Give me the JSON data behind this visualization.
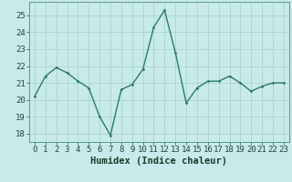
{
  "x": [
    0,
    1,
    2,
    3,
    4,
    5,
    6,
    7,
    8,
    9,
    10,
    11,
    12,
    13,
    14,
    15,
    16,
    17,
    18,
    19,
    20,
    21,
    22,
    23
  ],
  "y": [
    20.2,
    21.4,
    21.9,
    21.6,
    21.1,
    20.7,
    19.0,
    17.9,
    20.6,
    20.9,
    21.8,
    24.3,
    25.3,
    22.8,
    19.8,
    20.7,
    21.1,
    21.1,
    21.4,
    21.0,
    20.5,
    20.8,
    21.0,
    21.0
  ],
  "line_color": "#2d7a6a",
  "marker": "D",
  "marker_size": 1.8,
  "linewidth": 1.0,
  "xlabel": "Humidex (Indice chaleur)",
  "xlim": [
    -0.5,
    23.5
  ],
  "ylim": [
    17.5,
    25.8
  ],
  "yticks": [
    18,
    19,
    20,
    21,
    22,
    23,
    24,
    25
  ],
  "xticks": [
    0,
    1,
    2,
    3,
    4,
    5,
    6,
    7,
    8,
    9,
    10,
    11,
    12,
    13,
    14,
    15,
    16,
    17,
    18,
    19,
    20,
    21,
    22,
    23
  ],
  "bg_color": "#c8eaea",
  "grid_color": "#aad4d4",
  "spine_color": "#5a9a8a",
  "tick_label_color": "#1a4a3a",
  "xlabel_color": "#1a3a2a",
  "xlabel_fontsize": 7.5,
  "tick_fontsize": 6.5
}
